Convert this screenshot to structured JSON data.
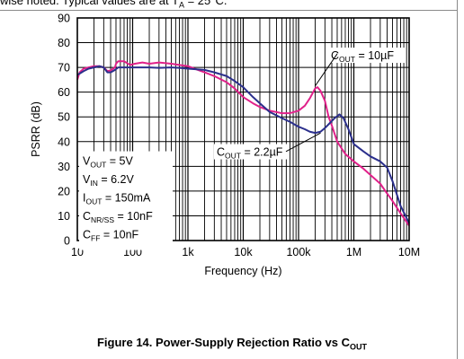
{
  "header": {
    "fragment_text": "wise noted. Typical values are at T",
    "fragment_sub": "A",
    "fragment_tail": " = 25°C."
  },
  "chart_data": {
    "type": "line",
    "title": "Figure 14. Power-Supply Rejection Ratio vs C",
    "title_sub": "OUT",
    "xlabel": "Frequency (Hz)",
    "ylabel": "PSRR (dB)",
    "xscale": "log",
    "xlim": [
      10,
      10000000
    ],
    "ylim": [
      0,
      90
    ],
    "x_ticks": [
      {
        "value": 10,
        "label": "10"
      },
      {
        "value": 100,
        "label": "100"
      },
      {
        "value": 1000,
        "label": "1k"
      },
      {
        "value": 10000,
        "label": "10k"
      },
      {
        "value": 100000,
        "label": "100k"
      },
      {
        "value": 1000000,
        "label": "1M"
      },
      {
        "value": 10000000,
        "label": "10M"
      }
    ],
    "y_ticks": [
      0,
      10,
      20,
      30,
      40,
      50,
      60,
      70,
      80,
      90
    ],
    "grid": true,
    "conditions": [
      {
        "main": "V",
        "sub": "OUT",
        "tail": " = 5V"
      },
      {
        "main": "V",
        "sub": "IN",
        "tail": " = 6.2V"
      },
      {
        "main": "I",
        "sub": "OUT",
        "tail": " = 150mA"
      },
      {
        "main": "C",
        "sub": "NR/SS",
        "tail": " = 10nF"
      },
      {
        "main": "C",
        "sub": "FF",
        "tail": " = 10nF"
      }
    ],
    "series": [
      {
        "label_main": "C",
        "label_sub": "OUT",
        "label_tail": " = 10µF",
        "color": "#e0218a",
        "points": [
          [
            10,
            65
          ],
          [
            11,
            68
          ],
          [
            13,
            69.5
          ],
          [
            16,
            70
          ],
          [
            20,
            70.5
          ],
          [
            25,
            70.5
          ],
          [
            30,
            70
          ],
          [
            35,
            68.5
          ],
          [
            40,
            68.8
          ],
          [
            48,
            70
          ],
          [
            50,
            71.5
          ],
          [
            55,
            72.5
          ],
          [
            70,
            72.5
          ],
          [
            90,
            71
          ],
          [
            110,
            71.5
          ],
          [
            150,
            72
          ],
          [
            200,
            71.5
          ],
          [
            300,
            72
          ],
          [
            500,
            71.5
          ],
          [
            700,
            71
          ],
          [
            1000,
            70.5
          ],
          [
            1500,
            69
          ],
          [
            2000,
            68
          ],
          [
            3000,
            66.5
          ],
          [
            5000,
            64
          ],
          [
            7000,
            61.5
          ],
          [
            10000,
            58
          ],
          [
            15000,
            55.5
          ],
          [
            20000,
            54
          ],
          [
            30000,
            52.5
          ],
          [
            50000,
            51.5
          ],
          [
            70000,
            51.5
          ],
          [
            100000,
            52.5
          ],
          [
            130000,
            54.5
          ],
          [
            160000,
            57.5
          ],
          [
            200000,
            61.5
          ],
          [
            220000,
            62
          ],
          [
            250000,
            60.5
          ],
          [
            300000,
            56.5
          ],
          [
            350000,
            50
          ],
          [
            400000,
            46.5
          ],
          [
            500000,
            40
          ],
          [
            700000,
            35
          ],
          [
            1000000,
            32
          ],
          [
            1500000,
            29
          ],
          [
            2000000,
            26.5
          ],
          [
            3000000,
            23
          ],
          [
            4000000,
            19
          ],
          [
            5000000,
            16
          ],
          [
            7000000,
            11
          ],
          [
            10000000,
            6
          ]
        ]
      },
      {
        "label_main": "C",
        "label_sub": "OUT",
        "label_tail": " = 2.2µF",
        "color": "#2b2f8c",
        "points": [
          [
            10,
            67
          ],
          [
            11,
            67.5
          ],
          [
            13,
            68.5
          ],
          [
            16,
            69.5
          ],
          [
            20,
            70
          ],
          [
            25,
            70.5
          ],
          [
            30,
            70
          ],
          [
            35,
            68
          ],
          [
            40,
            68
          ],
          [
            48,
            69
          ],
          [
            55,
            70
          ],
          [
            70,
            70
          ],
          [
            100,
            70
          ],
          [
            200,
            70
          ],
          [
            300,
            69.8
          ],
          [
            500,
            70
          ],
          [
            700,
            69.8
          ],
          [
            1000,
            69.5
          ],
          [
            2000,
            69
          ],
          [
            3000,
            68
          ],
          [
            5000,
            66.5
          ],
          [
            7000,
            64.5
          ],
          [
            10000,
            62
          ],
          [
            15000,
            58
          ],
          [
            20000,
            55.5
          ],
          [
            30000,
            52
          ],
          [
            50000,
            49.5
          ],
          [
            70000,
            48
          ],
          [
            100000,
            46
          ],
          [
            130000,
            45
          ],
          [
            160000,
            44
          ],
          [
            200000,
            43.5
          ],
          [
            250000,
            44
          ],
          [
            300000,
            45.5
          ],
          [
            350000,
            47
          ],
          [
            450000,
            49.5
          ],
          [
            550000,
            51
          ],
          [
            650000,
            49.5
          ],
          [
            800000,
            45
          ],
          [
            1000000,
            39
          ],
          [
            1500000,
            36
          ],
          [
            2000000,
            34
          ],
          [
            3000000,
            32
          ],
          [
            4000000,
            29.5
          ],
          [
            5000000,
            24
          ],
          [
            7000000,
            14
          ],
          [
            10000000,
            7
          ]
        ]
      }
    ]
  }
}
